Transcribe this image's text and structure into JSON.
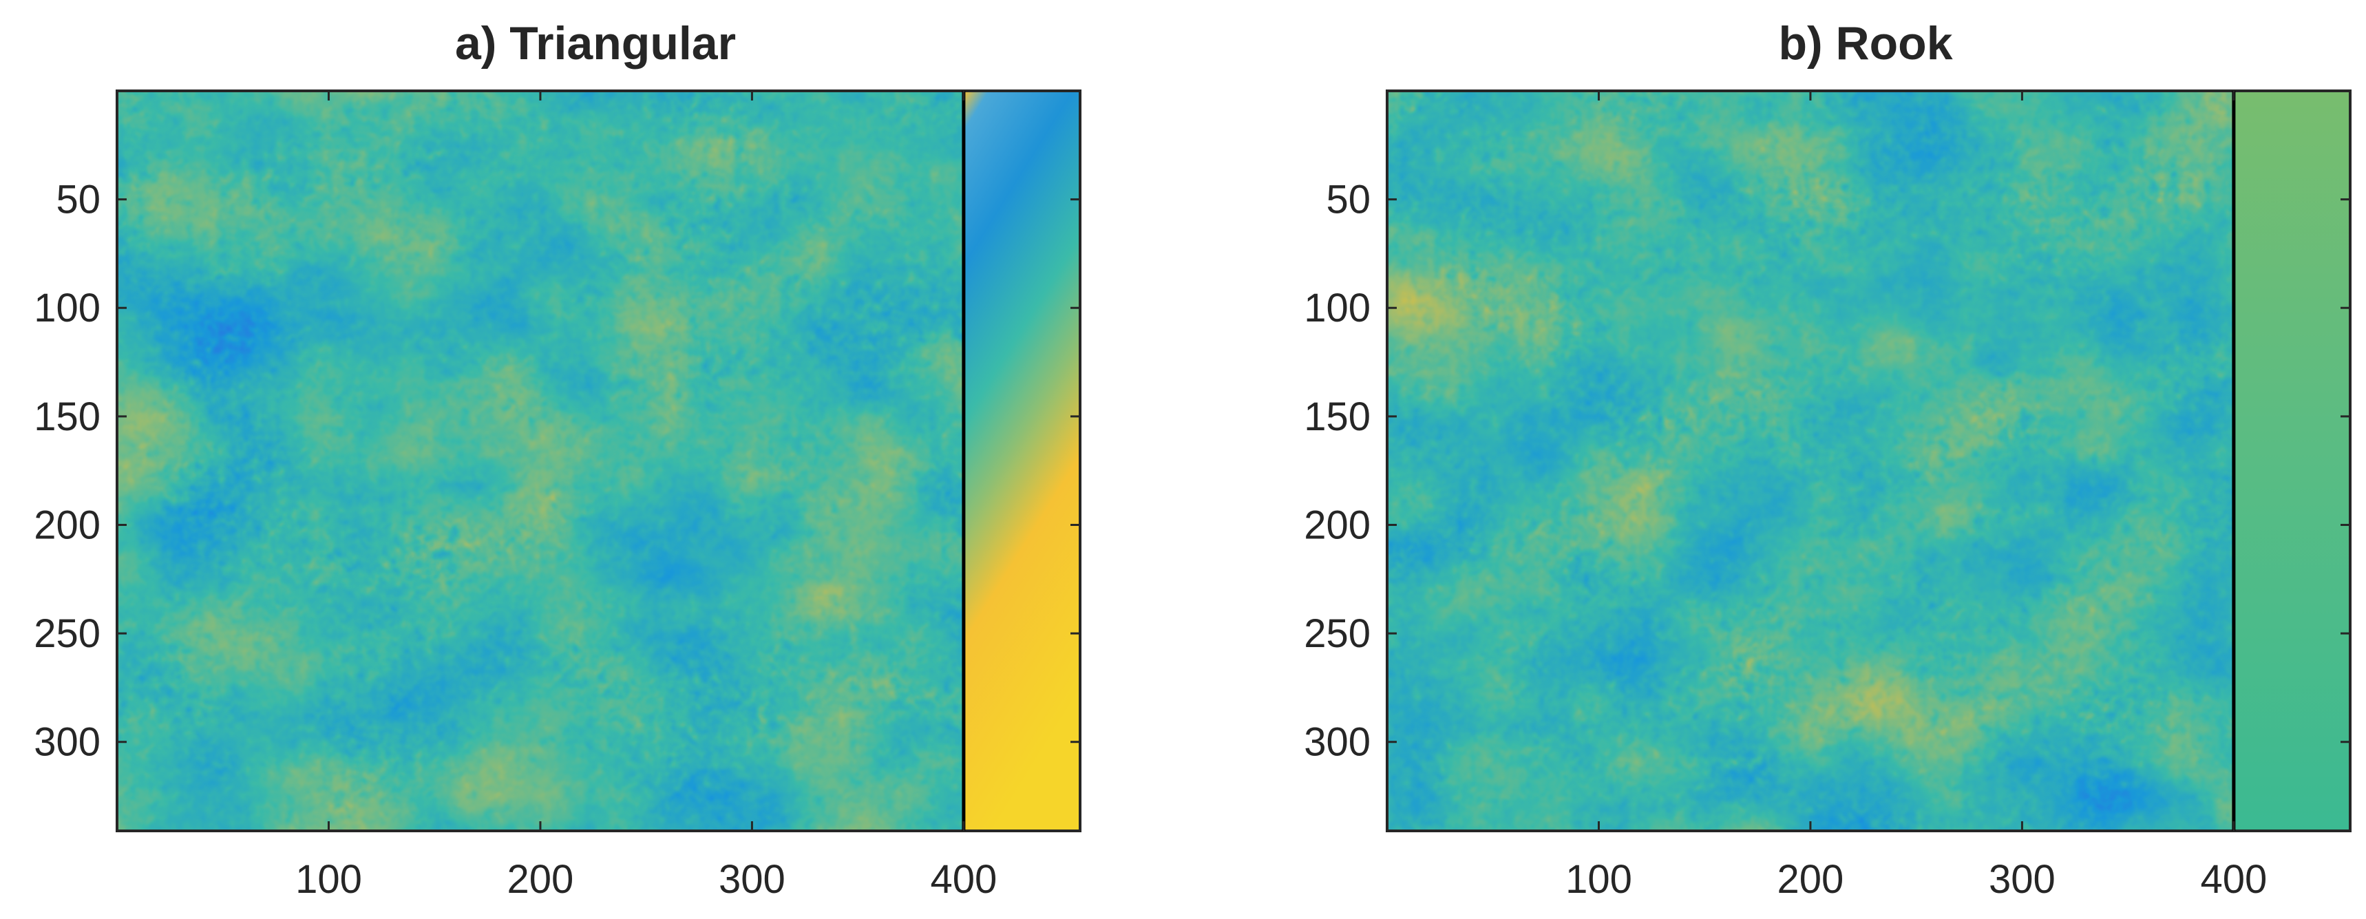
{
  "chart_data": [
    {
      "type": "heatmap",
      "title": "a)  Triangular",
      "xlim": [
        0,
        455
      ],
      "ylim": [
        341,
        0
      ],
      "y_reversed": true,
      "xticks": [
        100,
        200,
        300,
        400
      ],
      "yticks": [
        50,
        100,
        150,
        200,
        250,
        300
      ],
      "boundary_line_x": 400,
      "colormap": [
        "#3e26a8",
        "#2f63e7",
        "#1a9ad8",
        "#3bbba9",
        "#a3bd6a",
        "#f5c234",
        "#f9fb0e"
      ],
      "grid": false,
      "legend": "none"
    },
    {
      "type": "heatmap",
      "title": "b)  Rook",
      "xlim": [
        0,
        455
      ],
      "ylim": [
        341,
        0
      ],
      "y_reversed": true,
      "xticks": [
        100,
        200,
        300,
        400
      ],
      "yticks": [
        50,
        100,
        150,
        200,
        250,
        300
      ],
      "boundary_line_x": 400,
      "colormap": [
        "#3e26a8",
        "#2f63e7",
        "#1a9ad8",
        "#3bbba9",
        "#a3bd6a",
        "#f5c234",
        "#f9fb0e"
      ],
      "grid": false,
      "legend": "none"
    }
  ]
}
